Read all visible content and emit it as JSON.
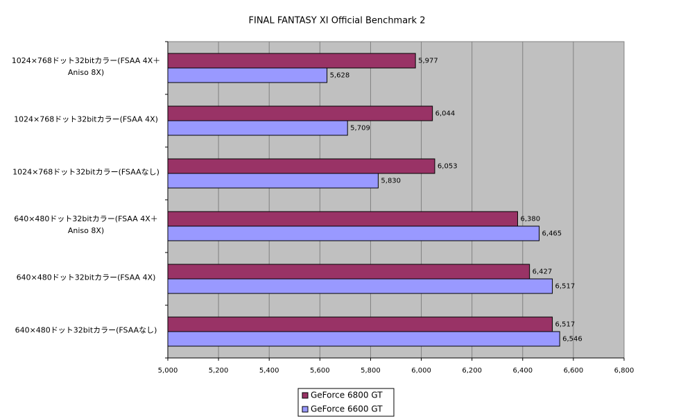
{
  "chart_data": {
    "type": "bar",
    "orientation": "horizontal",
    "title": "FINAL FANTASY XI Official Benchmark 2",
    "categories": [
      "1024×768ドット32bitカラー(FSAA 4X＋ Aniso 8X)",
      "1024×768ドット32bitカラー(FSAA 4X)",
      "1024×768ドット32bitカラー(FSAAなし)",
      "640×480ドット32bitカラー(FSAA 4X＋ Aniso 8X)",
      "640×480ドット32bitカラー(FSAA 4X)",
      "640×480ドット32bitカラー(FSAAなし)"
    ],
    "series": [
      {
        "name": "GeForce 6800 GT",
        "color": "#993366",
        "values": [
          5977,
          6044,
          6053,
          6380,
          6427,
          6517
        ],
        "value_labels": [
          "5,977",
          "6,044",
          "6,053",
          "6,380",
          "6,427",
          "6,517"
        ]
      },
      {
        "name": "GeForce 6600 GT",
        "color": "#9999ff",
        "values": [
          5628,
          5709,
          5830,
          6465,
          6517,
          6546
        ],
        "value_labels": [
          "5,628",
          "5,709",
          "5,830",
          "6,465",
          "6,517",
          "6,546"
        ]
      }
    ],
    "xlim": [
      5000,
      6800
    ],
    "xticks": [
      {
        "value": 5000,
        "label": "5,000"
      },
      {
        "value": 5200,
        "label": "5,200"
      },
      {
        "value": 5400,
        "label": "5,400"
      },
      {
        "value": 5600,
        "label": "5,600"
      },
      {
        "value": 5800,
        "label": "5,800"
      },
      {
        "value": 6000,
        "label": "6,000"
      },
      {
        "value": 6200,
        "label": "6,200"
      },
      {
        "value": 6400,
        "label": "6,400"
      },
      {
        "value": 6600,
        "label": "6,600"
      },
      {
        "value": 6800,
        "label": "6,800"
      }
    ],
    "grid": true,
    "legend": "bottom"
  }
}
